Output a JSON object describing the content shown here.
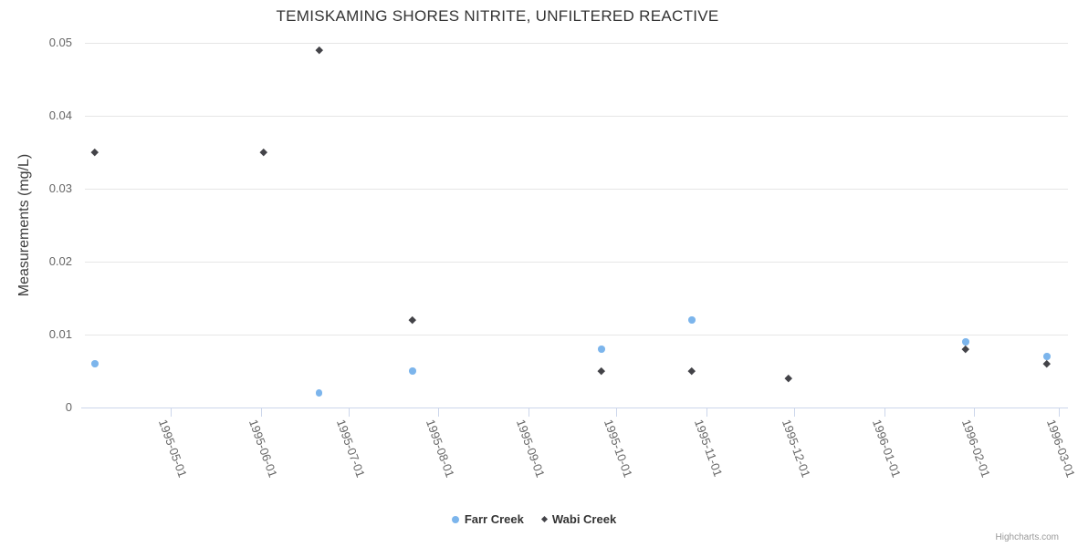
{
  "chart": {
    "credit": "Highcharts.com"
  },
  "chart_data": {
    "type": "scatter",
    "title": "TEMISKAMING SHORES NITRITE, UNFILTERED REACTIVE",
    "xlabel": "",
    "ylabel": "Measurements (mg/L)",
    "legend_position": "bottom",
    "x_axis": {
      "type": "datetime",
      "min": "1995-04-01",
      "max": "1996-03-04",
      "tick_labels": [
        "1995-05-01",
        "1995-06-01",
        "1995-07-01",
        "1995-08-01",
        "1995-09-01",
        "1995-10-01",
        "1995-11-01",
        "1995-12-01",
        "1996-01-01",
        "1996-02-01",
        "1996-03-01"
      ]
    },
    "y_axis": {
      "min": 0,
      "max": 0.05,
      "tick_labels": [
        "0",
        "0.01",
        "0.02",
        "0.03",
        "0.04",
        "0.05"
      ],
      "grid": true
    },
    "series": [
      {
        "name": "Farr Creek",
        "color": "#7cb5ec",
        "marker": "circle",
        "points": [
          {
            "x": "1995-04-05",
            "y": 0.006
          },
          {
            "x": "1995-06-21",
            "y": 0.002
          },
          {
            "x": "1995-07-23",
            "y": 0.005
          },
          {
            "x": "1995-09-26",
            "y": 0.008
          },
          {
            "x": "1995-10-27",
            "y": 0.012
          },
          {
            "x": "1996-01-29",
            "y": 0.009
          },
          {
            "x": "1996-02-26",
            "y": 0.007
          }
        ]
      },
      {
        "name": "Wabi Creek",
        "color": "#434348",
        "marker": "diamond",
        "points": [
          {
            "x": "1995-04-05",
            "y": 0.035
          },
          {
            "x": "1995-06-02",
            "y": 0.035
          },
          {
            "x": "1995-06-21",
            "y": 0.049
          },
          {
            "x": "1995-07-23",
            "y": 0.012
          },
          {
            "x": "1995-09-26",
            "y": 0.005
          },
          {
            "x": "1995-10-27",
            "y": 0.005
          },
          {
            "x": "1995-11-29",
            "y": 0.004
          },
          {
            "x": "1996-01-29",
            "y": 0.008
          },
          {
            "x": "1996-02-26",
            "y": 0.006
          }
        ]
      }
    ]
  }
}
